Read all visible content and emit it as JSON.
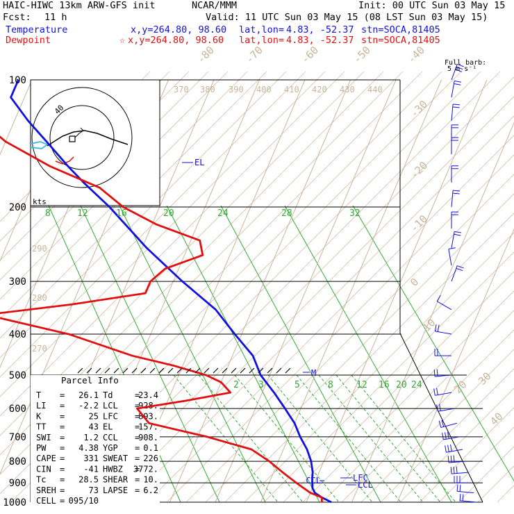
{
  "header": {
    "model": "HAIC-HIWC 13km ARW-GFS init",
    "org": "NCAR/MMM",
    "init": "Init: 00 UTC Sun 03 May 15",
    "fcst_label": "Fcst:",
    "fcst_value": "11 h",
    "valid": "Valid: 11 UTC Sun 03 May 15 (08 LST Sun 03 May 15)",
    "rows": [
      {
        "name": "Temperature",
        "star": "",
        "xy": "x,y=264.80, 98.60",
        "latlon_label": "lat,lon=",
        "latlon": "4.83, -52.37",
        "stn": "stn=SOCA,81405",
        "color": "#1010e0"
      },
      {
        "name": "Dewpoint",
        "star": "☆",
        "xy": "x,y=264.80, 98.60",
        "latlon_label": "lat,lon=",
        "latlon": "4.83, -52.37",
        "stn": "stn=SOCA,81405",
        "color": "#e01010"
      }
    ]
  },
  "barb_legend": {
    "line1": "Full barb:",
    "line2": "5 m s⁻¹"
  },
  "hodograph": {
    "units": "kts",
    "ring_label": "40"
  },
  "parcel_info": {
    "title": "Parcel Info",
    "rows": [
      [
        "T",
        "26.1",
        "Td",
        "23.4"
      ],
      [
        "LI",
        "-2.2",
        "LCL",
        "928."
      ],
      [
        "K",
        "25",
        "LFC",
        "893."
      ],
      [
        "TT",
        "43",
        "EL",
        "157."
      ],
      [
        "SWI",
        "1.2",
        "CCL",
        "908."
      ],
      [
        "PW",
        "4.38",
        "YGP",
        "0.1"
      ],
      [
        "CAPE",
        "331",
        "SWEAT",
        "226"
      ],
      [
        "CIN",
        "-41",
        "HWBZ",
        "3772."
      ],
      [
        "Tc",
        "28.5",
        "SHEAR",
        "10."
      ],
      [
        "SREH",
        "73",
        "LAPSE",
        "6.2"
      ],
      [
        "CELL",
        "095/10",
        "",
        ""
      ]
    ]
  },
  "chart_data": {
    "type": "line",
    "title": "",
    "xlabel": "",
    "ylabel": "",
    "y_scale": "log",
    "ylim": [
      1000,
      100
    ],
    "pressure_levels": [
      100,
      200,
      300,
      400,
      500,
      600,
      700,
      800,
      900,
      1000
    ],
    "isotherms": [
      -80,
      -70,
      -60,
      -50,
      -40,
      -30,
      -20,
      -10,
      0,
      10,
      20,
      30,
      40
    ],
    "dry_adiabats": [
      270,
      280,
      290,
      370,
      380,
      390,
      400,
      410,
      420,
      430,
      440
    ],
    "mixing_ratio_upper": [
      8,
      12,
      16,
      20,
      24,
      28,
      32
    ],
    "mixing_ratio_lower": [
      2,
      3,
      5,
      8,
      12,
      16,
      20,
      24
    ],
    "series": [
      {
        "name": "Temperature",
        "color": "#1010e0",
        "points": [
          [
            1000,
            25.5
          ],
          [
            975,
            23
          ],
          [
            950,
            21
          ],
          [
            925,
            20
          ],
          [
            900,
            19.5
          ],
          [
            875,
            19
          ],
          [
            850,
            18.6
          ],
          [
            800,
            17.2
          ],
          [
            750,
            15.2
          ],
          [
            700,
            12.5
          ],
          [
            650,
            10
          ],
          [
            600,
            6.5
          ],
          [
            550,
            2.6
          ],
          [
            500,
            -2
          ],
          [
            450,
            -5.5
          ],
          [
            400,
            -11.5
          ],
          [
            350,
            -18
          ],
          [
            300,
            -28
          ],
          [
            250,
            -39
          ],
          [
            200,
            -51
          ],
          [
            175,
            -59
          ],
          [
            160,
            -64
          ],
          [
            140,
            -71
          ],
          [
            125,
            -77
          ],
          [
            110,
            -83
          ],
          [
            100,
            -83
          ]
        ]
      },
      {
        "name": "Dewpoint",
        "color": "#e01010",
        "points": [
          [
            1000,
            23.4
          ],
          [
            975,
            23
          ],
          [
            950,
            20
          ],
          [
            925,
            18
          ],
          [
            900,
            16
          ],
          [
            850,
            12
          ],
          [
            800,
            8
          ],
          [
            750,
            3
          ],
          [
            700,
            -8
          ],
          [
            650,
            -22
          ],
          [
            600,
            -26
          ],
          [
            575,
            -16
          ],
          [
            550,
            -7
          ],
          [
            520,
            -10
          ],
          [
            500,
            -14
          ],
          [
            475,
            -22
          ],
          [
            450,
            -32
          ],
          [
            400,
            -48
          ],
          [
            360,
            -68
          ],
          [
            340,
            -50
          ],
          [
            320,
            -35
          ],
          [
            300,
            -35
          ],
          [
            280,
            -33
          ],
          [
            260,
            -26
          ],
          [
            240,
            -28
          ],
          [
            220,
            -39
          ],
          [
            200,
            -48
          ],
          [
            180,
            -55
          ],
          [
            160,
            -68
          ],
          [
            140,
            -80
          ],
          [
            120,
            -90
          ],
          [
            100,
            -92
          ]
        ]
      }
    ],
    "wind_barbs_kts": [
      {
        "p": 1000,
        "spd": 10,
        "dir": 95
      },
      {
        "p": 950,
        "spd": 12,
        "dir": 95
      },
      {
        "p": 900,
        "spd": 15,
        "dir": 90
      },
      {
        "p": 850,
        "spd": 15,
        "dir": 85
      },
      {
        "p": 800,
        "spd": 15,
        "dir": 85
      },
      {
        "p": 750,
        "spd": 15,
        "dir": 80
      },
      {
        "p": 700,
        "spd": 15,
        "dir": 80
      },
      {
        "p": 650,
        "spd": 12,
        "dir": 75
      },
      {
        "p": 600,
        "spd": 12,
        "dir": 80
      },
      {
        "p": 550,
        "spd": 10,
        "dir": 80
      },
      {
        "p": 500,
        "spd": 10,
        "dir": 85
      },
      {
        "p": 450,
        "spd": 8,
        "dir": 90
      },
      {
        "p": 400,
        "spd": 8,
        "dir": 100
      },
      {
        "p": 350,
        "spd": 5,
        "dir": 120
      },
      {
        "p": 300,
        "spd": 8,
        "dir": 200
      },
      {
        "p": 275,
        "spd": 5,
        "dir": 170
      },
      {
        "p": 250,
        "spd": 10,
        "dir": 190
      },
      {
        "p": 225,
        "spd": 10,
        "dir": 180
      },
      {
        "p": 200,
        "spd": 10,
        "dir": 185
      },
      {
        "p": 175,
        "spd": 10,
        "dir": 180
      },
      {
        "p": 150,
        "spd": 10,
        "dir": 180
      },
      {
        "p": 140,
        "spd": 12,
        "dir": 180
      },
      {
        "p": 125,
        "spd": 10,
        "dir": 185
      },
      {
        "p": 110,
        "spd": 10,
        "dir": 190
      },
      {
        "p": 100,
        "spd": 15,
        "dir": 200
      }
    ],
    "annotations": [
      {
        "label": "EL",
        "p": 157
      },
      {
        "label": "M",
        "p": 500
      },
      {
        "label": "LFC",
        "p": 893
      },
      {
        "label": "CCL",
        "p": 908
      },
      {
        "label": "LCL",
        "p": 928
      }
    ]
  }
}
